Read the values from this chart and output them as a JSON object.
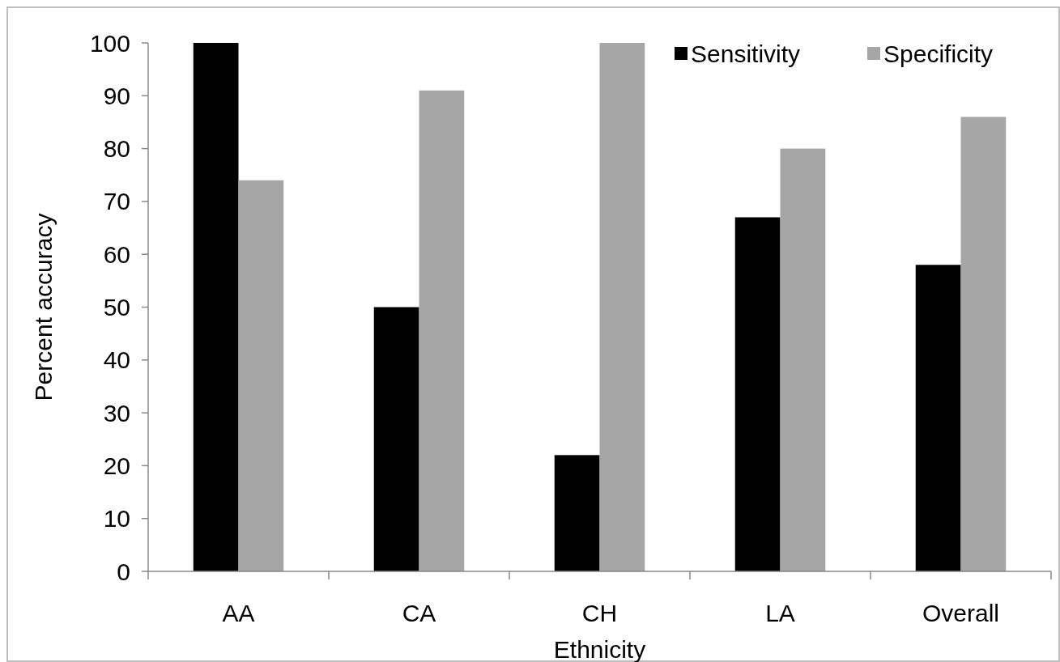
{
  "chart_data": {
    "type": "bar",
    "xlabel": "Ethnicity",
    "ylabel": "Percent accuracy",
    "categories": [
      "AA",
      "CA",
      "CH",
      "LA",
      "Overall"
    ],
    "series": [
      {
        "name": "Sensitivity",
        "color": "#000000",
        "values": [
          100,
          50,
          22,
          67,
          58
        ]
      },
      {
        "name": "Specificity",
        "color": "#a6a6a6",
        "values": [
          74,
          91,
          100,
          80,
          86
        ]
      }
    ],
    "ylim": [
      0,
      100
    ],
    "yticks": [
      0,
      10,
      20,
      30,
      40,
      50,
      60,
      70,
      80,
      90,
      100
    ],
    "grid": false,
    "legend": "top right"
  }
}
